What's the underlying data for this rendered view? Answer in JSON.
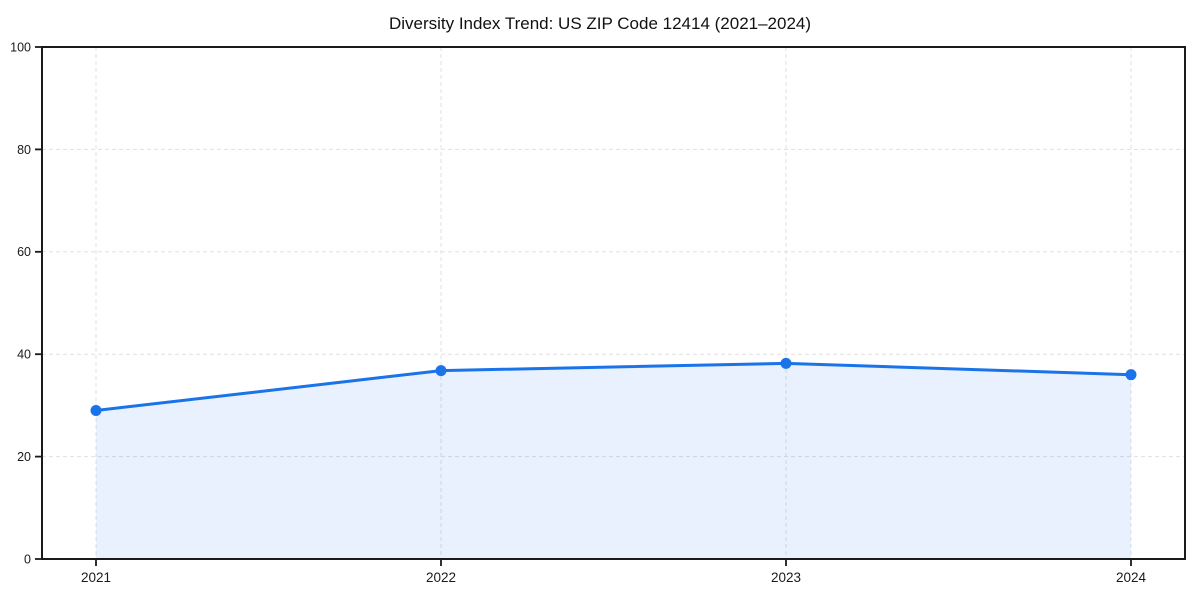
{
  "chart_data": {
    "type": "area",
    "title": "Diversity Index Trend: US ZIP Code 12414 (2021–2024)",
    "categories": [
      "2021",
      "2022",
      "2023",
      "2024"
    ],
    "series": [
      {
        "name": "Diversity Index",
        "values": [
          29.0,
          36.8,
          38.2,
          36.0
        ]
      }
    ],
    "xlabel": "",
    "ylabel": "",
    "ylim": [
      0,
      100
    ],
    "yticks": [
      0,
      20,
      40,
      60,
      80,
      100
    ],
    "grid": true,
    "grid_style": "dashed",
    "legend_position": "none",
    "colors": {
      "line": "#1a73e8",
      "marker": "#1a73e8",
      "fill": "rgba(26,115,232,0.10)",
      "gridline": "#e0e0e0",
      "spine": "#1a1a1a",
      "tick": "#1a1a1a",
      "tick_label": "#1a1a1a",
      "title": "#111111",
      "background": "#ffffff"
    }
  }
}
